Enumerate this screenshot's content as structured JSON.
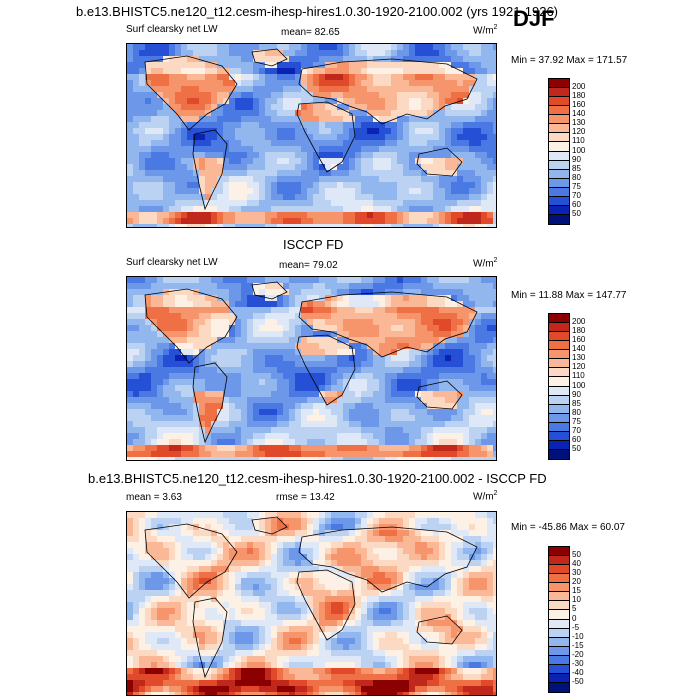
{
  "header": {
    "title": "b.e13.BHISTC5.ne120_t12.cesm-ihesp-hires1.0.30-1920-2100.002 (yrs 1921-1926)",
    "season": "DJF"
  },
  "chart_data": [
    {
      "type": "heatmap",
      "name": "model",
      "title": "",
      "variable": "Surf clearsky net LW",
      "mean_label": "mean=",
      "mean": "82.65",
      "units_base": "W/m",
      "units_exp": "2",
      "min_label": "Min =",
      "min": "37.92",
      "max_label": "Max =",
      "max": "171.57",
      "levels": [
        "200",
        "180",
        "160",
        "140",
        "130",
        "120",
        "110",
        "100",
        "90",
        "85",
        "80",
        "75",
        "70",
        "60",
        "50"
      ],
      "colors": [
        "#8b0000",
        "#c0281b",
        "#e04a2a",
        "#ef7045",
        "#f6946b",
        "#fbb896",
        "#fcd9c2",
        "#fdf1e6",
        "#dfe8f6",
        "#bcd2f2",
        "#92b6ee",
        "#6d98ea",
        "#4a79e3",
        "#2550d6",
        "#0a23b5",
        "#00127a"
      ]
    },
    {
      "type": "heatmap",
      "name": "obs",
      "title": "ISCCP FD",
      "variable": "Surf clearsky net LW",
      "mean_label": "mean=",
      "mean": "79.02",
      "units_base": "W/m",
      "units_exp": "2",
      "min_label": "Min =",
      "min": "11.88",
      "max_label": "Max =",
      "max": "147.77",
      "levels": [
        "200",
        "180",
        "160",
        "140",
        "130",
        "120",
        "110",
        "100",
        "90",
        "85",
        "80",
        "75",
        "70",
        "60",
        "50"
      ],
      "colors": [
        "#8b0000",
        "#c0281b",
        "#e04a2a",
        "#ef7045",
        "#f6946b",
        "#fbb896",
        "#fcd9c2",
        "#fdf1e6",
        "#dfe8f6",
        "#bcd2f2",
        "#92b6ee",
        "#6d98ea",
        "#4a79e3",
        "#2550d6",
        "#0a23b5",
        "#00127a"
      ]
    },
    {
      "type": "heatmap",
      "name": "difference",
      "title": "b.e13.BHISTC5.ne120_t12.cesm-ihesp-hires1.0.30-1920-2100.002 - ISCCP FD",
      "mean_label": "mean =",
      "mean": "3.63",
      "rmse_label": "rmse =",
      "rmse": "13.42",
      "units_base": "W/m",
      "units_exp": "2",
      "min_label": "Min =",
      "min": "-45.86",
      "max_label": "Max =",
      "max": "60.07",
      "levels": [
        "50",
        "40",
        "30",
        "20",
        "15",
        "10",
        "5",
        "0",
        "-5",
        "-10",
        "-15",
        "-20",
        "-30",
        "-40",
        "-50"
      ],
      "colors": [
        "#8b0000",
        "#c0281b",
        "#e04a2a",
        "#ef7045",
        "#f6946b",
        "#fbb896",
        "#fcd9c2",
        "#fdf1e6",
        "#dfe8f6",
        "#bcd2f2",
        "#92b6ee",
        "#6d98ea",
        "#4a79e3",
        "#2550d6",
        "#0a23b5",
        "#00127a"
      ]
    }
  ]
}
